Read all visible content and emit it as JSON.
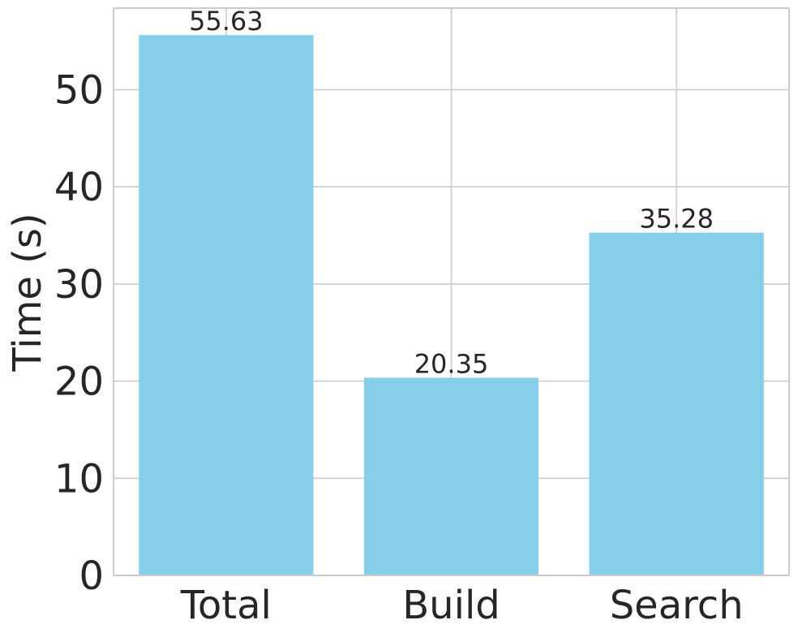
{
  "chart_data": {
    "type": "bar",
    "categories": [
      "Total",
      "Build",
      "Search"
    ],
    "values": [
      55.63,
      20.35,
      35.28
    ],
    "value_labels": [
      "55.63",
      "20.35",
      "35.28"
    ],
    "title": "",
    "xlabel": "",
    "ylabel": "Time (s)",
    "ylim": [
      0,
      58.4
    ],
    "yticks": [
      0,
      10,
      20,
      30,
      40,
      50
    ],
    "ytick_labels": [
      "0",
      "10",
      "20",
      "30",
      "40",
      "50"
    ],
    "grid": true,
    "bar_color": "#87CEEB",
    "text_color": "#262626",
    "grid_color": "#cccccc"
  }
}
